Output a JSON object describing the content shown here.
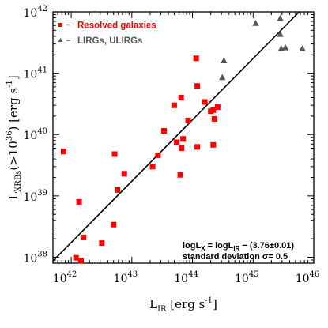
{
  "chart_data": {
    "type": "scatter",
    "x_scale": "log",
    "y_scale": "log",
    "xlim": [
      5e+41,
      1e+46
    ],
    "ylim": [
      8e+37,
      1e+42
    ],
    "x_ticks": [
      {
        "base": "10",
        "exp": "42",
        "value": 1e+42
      },
      {
        "base": "10",
        "exp": "43",
        "value": 1e+43
      },
      {
        "base": "10",
        "exp": "44",
        "value": 1e+44
      },
      {
        "base": "10",
        "exp": "45",
        "value": 1e+45
      },
      {
        "base": "10",
        "exp": "46",
        "value": 1e+46
      }
    ],
    "y_ticks": [
      {
        "base": "10",
        "exp": "38",
        "value": 1e+38
      },
      {
        "base": "10",
        "exp": "39",
        "value": 1e+39
      },
      {
        "base": "10",
        "exp": "40",
        "value": 1e+40
      },
      {
        "base": "10",
        "exp": "41",
        "value": 1e+41
      },
      {
        "base": "10",
        "exp": "42",
        "value": 1e+42
      }
    ],
    "xlabel": {
      "main": "L",
      "sub": "IR",
      "unit": " [erg s",
      "unit_exp": "-1",
      "close": "]"
    },
    "ylabel": {
      "main": "L",
      "sub": "XRBs",
      "paren_open": "(>10",
      "paren_exp": "36",
      "paren_close": ")",
      "unit": " [erg s",
      "unit_exp": "-1",
      "close": "]"
    },
    "grid": false,
    "legend_position": "top-left",
    "legend": [
      {
        "label": "Resolved galaxies",
        "color": "#ff0000",
        "marker": "square"
      },
      {
        "label": "LIRGs, ULIRGs",
        "color": "#555555",
        "marker": "triangle"
      }
    ],
    "fit_line": {
      "slope": 1,
      "intercept_log": -3.76
    },
    "annotation": {
      "line1": {
        "a": "logL",
        "a_sub": "X",
        "b": " = logL",
        "b_sub": "IR",
        "c": " − (3.76±0.01)"
      },
      "line2": "standard deviation σ= 0.5"
    },
    "series": [
      {
        "name": "Resolved galaxies",
        "color": "#ff0000",
        "marker": "square",
        "points": [
          {
            "x": 7.5e+41,
            "y": 5.3e+39
          },
          {
            "x": 1.2e+42,
            "y": 9.8e+37
          },
          {
            "x": 1.35e+42,
            "y": 8e+38
          },
          {
            "x": 1.45e+42,
            "y": 8.8e+37
          },
          {
            "x": 1.6e+42,
            "y": 2.1e+38
          },
          {
            "x": 3.2e+42,
            "y": 1.7e+38
          },
          {
            "x": 5e+42,
            "y": 3.4e+38
          },
          {
            "x": 5.2e+42,
            "y": 4.8e+39
          },
          {
            "x": 5.8e+42,
            "y": 1.25e+39
          },
          {
            "x": 7.5e+42,
            "y": 2.3e+39
          },
          {
            "x": 2.2e+43,
            "y": 3e+39
          },
          {
            "x": 2.7e+43,
            "y": 4.6e+39
          },
          {
            "x": 3.4e+43,
            "y": 1.15e+40
          },
          {
            "x": 5e+43,
            "y": 3e+40
          },
          {
            "x": 5.5e+43,
            "y": 7.5e+39
          },
          {
            "x": 6.3e+43,
            "y": 2.2e+39
          },
          {
            "x": 6.5e+43,
            "y": 4e+40
          },
          {
            "x": 6.6e+43,
            "y": 6e+39
          },
          {
            "x": 7e+43,
            "y": 8.5e+39
          },
          {
            "x": 8.5e+43,
            "y": 1.7e+40
          },
          {
            "x": 1.15e+44,
            "y": 1.75e+41
          },
          {
            "x": 1.2e+44,
            "y": 6.2e+40
          },
          {
            "x": 1.2e+44,
            "y": 6.3e+39
          },
          {
            "x": 1.6e+44,
            "y": 3.4e+40
          },
          {
            "x": 2e+44,
            "y": 2.4e+40
          },
          {
            "x": 2.2e+44,
            "y": 2.5e+40
          },
          {
            "x": 2.2e+44,
            "y": 6.8e+39
          },
          {
            "x": 2.3e+44,
            "y": 1.8e+40
          },
          {
            "x": 2.6e+44,
            "y": 2.8e+40
          }
        ]
      },
      {
        "name": "LIRGs, ULIRGs",
        "color": "#555555",
        "marker": "triangle",
        "points": [
          {
            "x": 3.1e+44,
            "y": 8.5e+40
          },
          {
            "x": 3.3e+44,
            "y": 1.6e+41
          },
          {
            "x": 1.1e+45,
            "y": 6.5e+41
          },
          {
            "x": 2.8e+45,
            "y": 7.8e+41
          },
          {
            "x": 2.8e+45,
            "y": 4.3e+41
          },
          {
            "x": 2.9e+45,
            "y": 2.5e+41
          },
          {
            "x": 3.4e+45,
            "y": 2.6e+41
          },
          {
            "x": 6.5e+45,
            "y": 2.5e+41
          }
        ]
      }
    ]
  }
}
